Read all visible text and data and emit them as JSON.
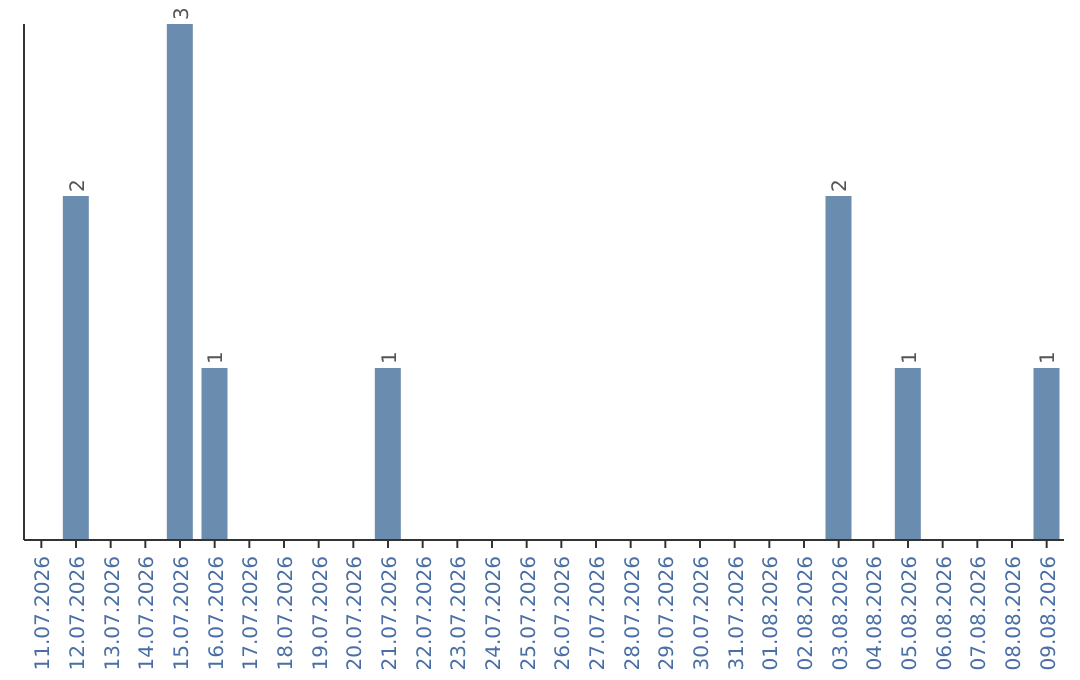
{
  "chart_data": {
    "type": "bar",
    "categories": [
      "11.07.2026",
      "12.07.2026",
      "13.07.2026",
      "14.07.2026",
      "15.07.2026",
      "16.07.2026",
      "17.07.2026",
      "18.07.2026",
      "19.07.2026",
      "20.07.2026",
      "21.07.2026",
      "22.07.2026",
      "23.07.2026",
      "24.07.2026",
      "25.07.2026",
      "26.07.2026",
      "27.07.2026",
      "28.07.2026",
      "29.07.2026",
      "30.07.2026",
      "31.07.2026",
      "01.08.2026",
      "02.08.2026",
      "03.08.2026",
      "04.08.2026",
      "05.08.2026",
      "06.08.2026",
      "07.08.2026",
      "08.08.2026",
      "09.08.2026"
    ],
    "values": [
      0,
      2,
      0,
      0,
      3,
      1,
      0,
      0,
      0,
      0,
      1,
      0,
      0,
      0,
      0,
      0,
      0,
      0,
      0,
      0,
      0,
      0,
      0,
      2,
      0,
      1,
      0,
      0,
      0,
      1
    ],
    "value_labels": [
      null,
      "2",
      null,
      null,
      "3",
      "1",
      null,
      null,
      null,
      null,
      "1",
      null,
      null,
      null,
      null,
      null,
      null,
      null,
      null,
      null,
      null,
      null,
      null,
      "2",
      null,
      "1",
      null,
      null,
      null,
      "1"
    ],
    "color": "#6a8caf",
    "grid": false,
    "legend": false,
    "tick_labels": "x"
  }
}
